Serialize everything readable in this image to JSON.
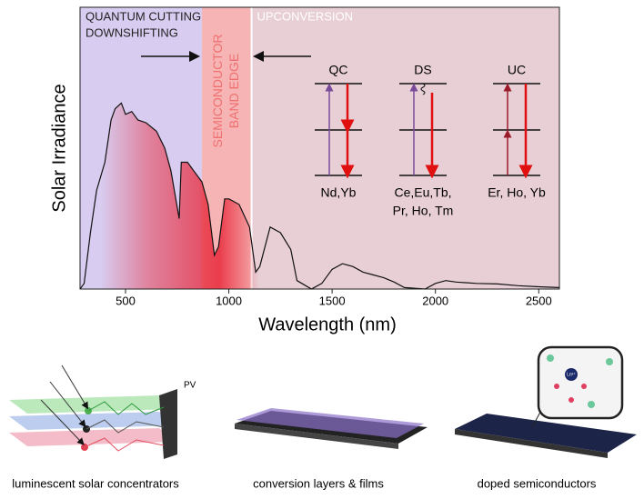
{
  "chart_data": {
    "type": "line",
    "xlabel": "Wavelength (nm)",
    "ylabel": "Solar Irradiance",
    "xlim": [
      280,
      2600
    ],
    "ylim": [
      0,
      1
    ],
    "xticks": [
      500,
      1000,
      1500,
      2000,
      2500
    ],
    "color": "#111111",
    "x": [
      280,
      300,
      330,
      360,
      400,
      430,
      450,
      480,
      500,
      530,
      560,
      600,
      650,
      690,
      720,
      760,
      770,
      800,
      830,
      870,
      900,
      930,
      950,
      980,
      1000,
      1050,
      1100,
      1130,
      1150,
      1200,
      1250,
      1300,
      1330,
      1400,
      1450,
      1500,
      1550,
      1600,
      1650,
      1700,
      1750,
      1800,
      1850,
      1950,
      2000,
      2050,
      2100,
      2200,
      2300,
      2400,
      2500,
      2600
    ],
    "values": [
      0,
      0.02,
      0.2,
      0.35,
      0.45,
      0.6,
      0.64,
      0.66,
      0.62,
      0.63,
      0.6,
      0.59,
      0.56,
      0.5,
      0.42,
      0.25,
      0.45,
      0.45,
      0.42,
      0.38,
      0.3,
      0.12,
      0.15,
      0.32,
      0.32,
      0.3,
      0.22,
      0.06,
      0.08,
      0.22,
      0.2,
      0.14,
      0.03,
      0,
      0.02,
      0.07,
      0.09,
      0.08,
      0.06,
      0.05,
      0.04,
      0.025,
      0.005,
      0,
      0.02,
      0.03,
      0.025,
      0.02,
      0.018,
      0.012,
      0.008,
      0.005
    ],
    "regions": [
      {
        "label": [
          "QUANTUM CUTTING",
          "DOWNSHIFTING"
        ],
        "start": 280,
        "end": 870,
        "color": "#d8cdf0"
      },
      {
        "label": [
          "SEMICONDUCTOR",
          "BAND EDGE"
        ],
        "start": 870,
        "end": 1110,
        "color": "#f6b4b4"
      },
      {
        "label": [
          "UPCONVERSION"
        ],
        "start": 1110,
        "end": 2600,
        "color": "#e8cfd6"
      }
    ],
    "diagrams": [
      {
        "title": "QC",
        "ions": [
          "Nd,Yb"
        ]
      },
      {
        "title": "DS",
        "ions": [
          "Ce,Eu,Tb,",
          "Pr, Ho, Tm"
        ]
      },
      {
        "title": "UC",
        "ions": [
          "Er, Ho, Yb"
        ]
      }
    ]
  },
  "illustrations": {
    "labels": [
      "luminescent solar concentrators",
      "conversion layers & films",
      "doped semiconductors"
    ],
    "pv": "PV",
    "ion": "Ln³⁺"
  }
}
